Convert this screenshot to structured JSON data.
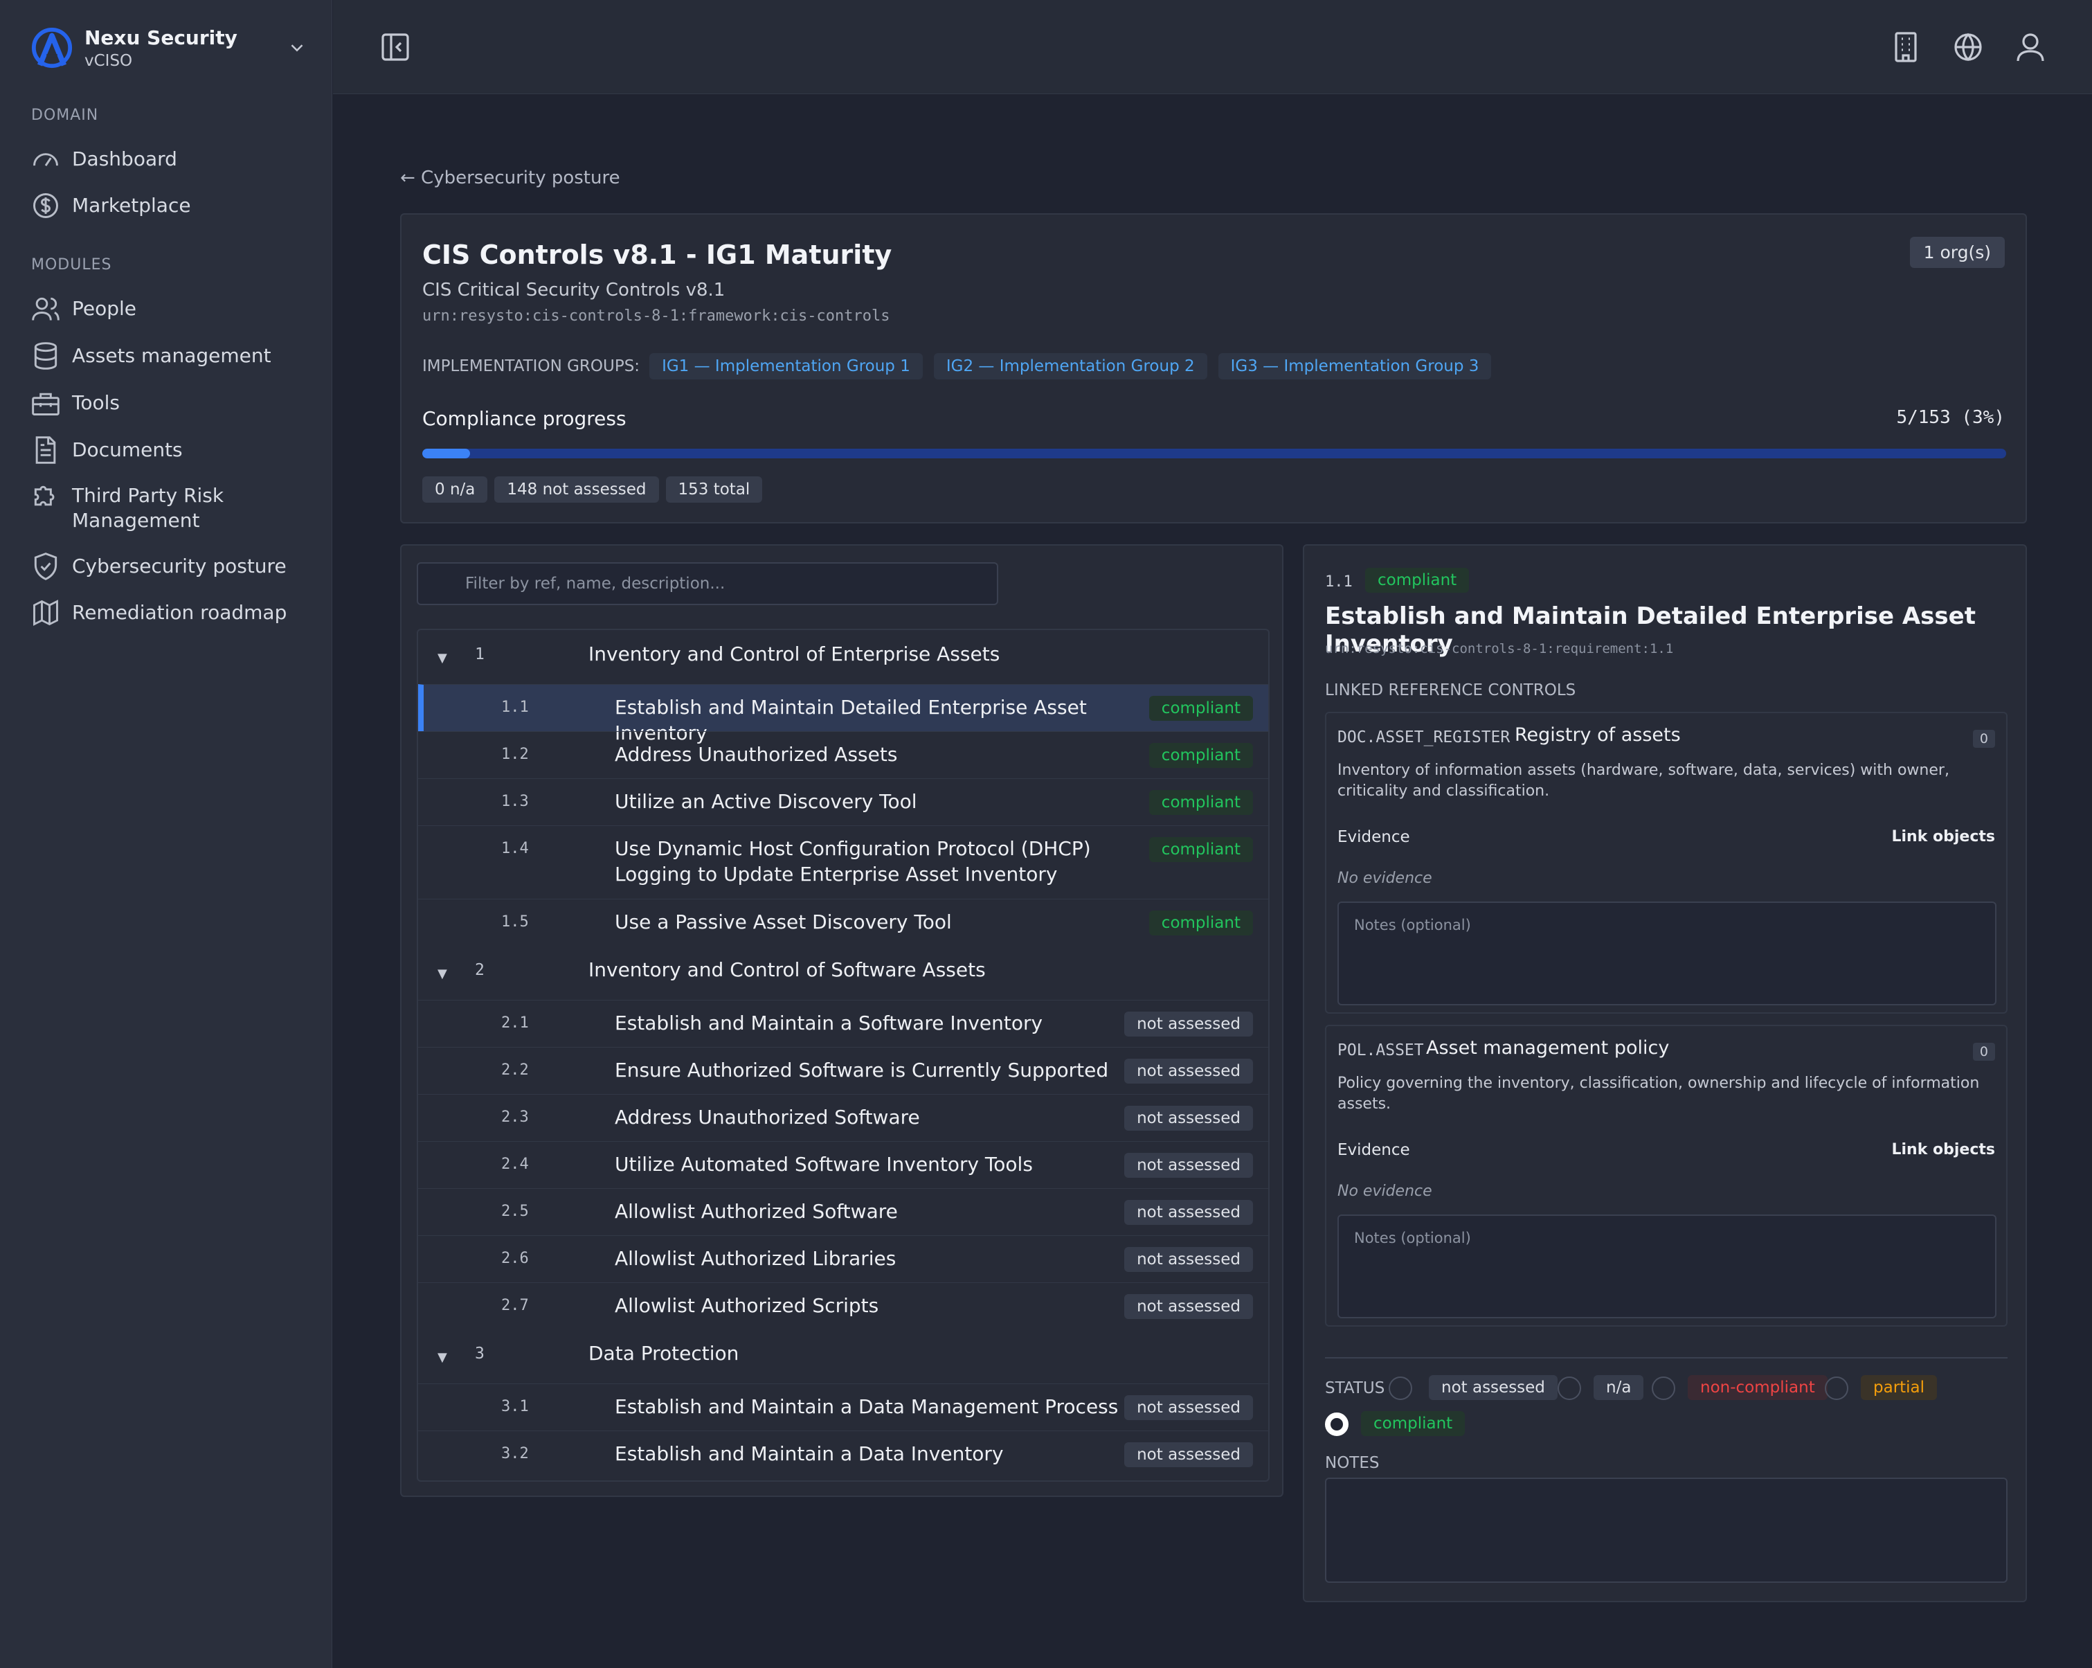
{
  "sidebar": {
    "org_name": "Nexu Security",
    "org_role": "vCISO",
    "section_domain": "DOMAIN",
    "section_modules": "MODULES",
    "domain_items": [
      {
        "label": "Dashboard",
        "icon": "gauge-icon"
      },
      {
        "label": "Marketplace",
        "icon": "dollar-coin-icon"
      }
    ],
    "module_items": [
      {
        "label": "People",
        "icon": "users-icon"
      },
      {
        "label": "Assets management",
        "icon": "database-icon"
      },
      {
        "label": "Tools",
        "icon": "toolbox-icon"
      },
      {
        "label": "Documents",
        "icon": "document-icon"
      },
      {
        "label": "Third Party Risk Management",
        "icon": "puzzle-icon"
      },
      {
        "label": "Cybersecurity posture",
        "icon": "shield-check-icon"
      },
      {
        "label": "Remediation roadmap",
        "icon": "map-icon"
      }
    ]
  },
  "topbar": {
    "icons": [
      "sidebar-collapse-icon",
      "building-icon",
      "globe-icon",
      "user-icon"
    ]
  },
  "breadcrumb": "← Cybersecurity posture",
  "framework": {
    "title": "CIS Controls v8.1 - IG1 Maturity",
    "subtitle": "CIS Critical Security Controls v8.1",
    "urn": "urn:resysto:cis-controls-8-1:framework:cis-controls",
    "org_count": "1 org(s)",
    "ig_label": "IMPLEMENTATION GROUPS:",
    "implementation_groups": [
      "IG1 — Implementation Group 1",
      "IG2 — Implementation Group 2",
      "IG3 — Implementation Group 3"
    ],
    "progress_label": "Compliance progress",
    "progress_value": "5/153 (3%)",
    "progress_fraction": 0.03,
    "chips": [
      "0 n/a",
      "148 not assessed",
      "153 total"
    ]
  },
  "tree": {
    "filter_placeholder": "Filter by ref, name, description...",
    "groups": [
      {
        "ref": "1",
        "name": "Inventory and Control of Enterprise Assets",
        "items": [
          {
            "ref": "1.1",
            "name": "Establish and Maintain Detailed Enterprise Asset Inventory",
            "status": "compliant",
            "selected": true
          },
          {
            "ref": "1.2",
            "name": "Address Unauthorized Assets",
            "status": "compliant"
          },
          {
            "ref": "1.3",
            "name": "Utilize an Active Discovery Tool",
            "status": "compliant"
          },
          {
            "ref": "1.4",
            "name": "Use Dynamic Host Configuration Protocol (DHCP) Logging to Update Enterprise Asset Inventory",
            "status": "compliant"
          },
          {
            "ref": "1.5",
            "name": "Use a Passive Asset Discovery Tool",
            "status": "compliant"
          }
        ]
      },
      {
        "ref": "2",
        "name": "Inventory and Control of Software Assets",
        "items": [
          {
            "ref": "2.1",
            "name": "Establish and Maintain a Software Inventory",
            "status": "not assessed"
          },
          {
            "ref": "2.2",
            "name": "Ensure Authorized Software is Currently Supported",
            "status": "not assessed"
          },
          {
            "ref": "2.3",
            "name": "Address Unauthorized Software",
            "status": "not assessed"
          },
          {
            "ref": "2.4",
            "name": "Utilize Automated Software Inventory Tools",
            "status": "not assessed"
          },
          {
            "ref": "2.5",
            "name": "Allowlist Authorized Software",
            "status": "not assessed"
          },
          {
            "ref": "2.6",
            "name": "Allowlist Authorized Libraries",
            "status": "not assessed"
          },
          {
            "ref": "2.7",
            "name": "Allowlist Authorized Scripts",
            "status": "not assessed"
          }
        ]
      },
      {
        "ref": "3",
        "name": "Data Protection",
        "items": [
          {
            "ref": "3.1",
            "name": "Establish and Maintain a Data Management Process",
            "status": "not assessed"
          },
          {
            "ref": "3.2",
            "name": "Establish and Maintain a Data Inventory",
            "status": "not assessed"
          }
        ]
      }
    ]
  },
  "detail": {
    "ref": "1.1",
    "status": "compliant",
    "title": "Establish and Maintain Detailed Enterprise Asset Inventory",
    "urn": "urn:resysto:cis-controls-8-1:requirement:1.1",
    "linked_label": "LINKED REFERENCE CONTROLS",
    "controls": [
      {
        "code": "DOC.ASSET_REGISTER",
        "name": "Registry of assets",
        "count": "0",
        "description": "Inventory of information assets (hardware, software, data, services) with owner, criticality and classification.",
        "evidence_label": "Evidence",
        "link_label": "Link objects",
        "no_evidence": "No evidence",
        "notes_placeholder": "Notes (optional)"
      },
      {
        "code": "POL.ASSET",
        "name": "Asset management policy",
        "count": "0",
        "description": "Policy governing the inventory, classification, ownership and lifecycle of information assets.",
        "evidence_label": "Evidence",
        "link_label": "Link objects",
        "no_evidence": "No evidence",
        "notes_placeholder": "Notes (optional)"
      }
    ],
    "status_label": "STATUS",
    "status_options": [
      "not assessed",
      "n/a",
      "non-compliant",
      "partial",
      "compliant"
    ],
    "selected_status": "compliant",
    "notes_label": "NOTES"
  },
  "colors": {
    "accent": "#3b82f6",
    "compliant": "#22c55e",
    "non_compliant": "#ef4444",
    "partial": "#f59e0b"
  }
}
